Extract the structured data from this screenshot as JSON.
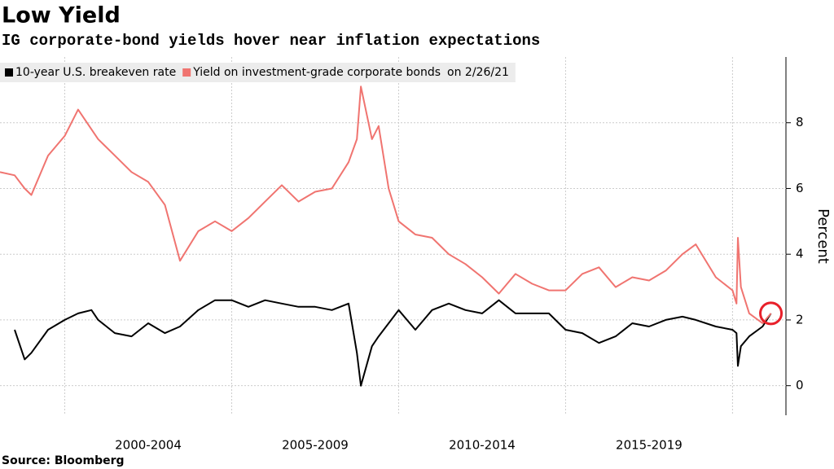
{
  "chart_data": {
    "type": "line",
    "title": "Low Yield",
    "subtitle": "IG corporate-bond yields hover near inflation expectations",
    "ylabel": "Percent",
    "source": "Source: Bloomberg",
    "legend_note": "on 2/26/21",
    "x": [
      1998.06,
      1998.5,
      1998.8,
      1999,
      1999.5,
      2000,
      2000.4,
      2000.8,
      2001,
      2001.5,
      2002,
      2002.5,
      2003,
      2003.45,
      2004,
      2004.5,
      2005,
      2005.5,
      2006,
      2006.5,
      2007,
      2007.5,
      2008,
      2008.5,
      2008.75,
      2008.87,
      2009.2,
      2009.4,
      2009.7,
      2010,
      2010.5,
      2011,
      2011.5,
      2012,
      2012.5,
      2013,
      2013.5,
      2014,
      2014.5,
      2015,
      2015.5,
      2016,
      2016.5,
      2017,
      2017.5,
      2018,
      2018.5,
      2018.9,
      2019.5,
      2020,
      2020.12,
      2020.16,
      2020.25,
      2020.5,
      2020.9,
      2021.15
    ],
    "series": [
      {
        "name": "10-year U.S. breakeven rate",
        "color": "#000000",
        "values": [
          null,
          1.7,
          0.8,
          1.0,
          1.7,
          2.0,
          2.2,
          2.3,
          2.0,
          1.6,
          1.5,
          1.9,
          1.6,
          1.8,
          2.3,
          2.6,
          2.6,
          2.4,
          2.6,
          2.5,
          2.4,
          2.4,
          2.3,
          2.5,
          1.0,
          0.0,
          1.2,
          1.5,
          1.9,
          2.3,
          1.7,
          2.3,
          2.5,
          2.3,
          2.2,
          2.6,
          2.2,
          2.2,
          2.2,
          1.7,
          1.6,
          1.3,
          1.5,
          1.9,
          1.8,
          2.0,
          2.1,
          2.0,
          1.8,
          1.7,
          1.6,
          0.6,
          1.2,
          1.5,
          1.8,
          2.2
        ]
      },
      {
        "name": "Yield on investment-grade corporate bonds",
        "color": "#f07470",
        "values": [
          6.5,
          6.4,
          6.0,
          5.8,
          7.0,
          7.6,
          8.4,
          7.8,
          7.5,
          7.0,
          6.5,
          6.2,
          5.5,
          3.8,
          4.7,
          5.0,
          4.7,
          5.1,
          5.6,
          6.1,
          5.6,
          5.9,
          6.0,
          6.8,
          7.5,
          9.1,
          7.5,
          7.9,
          6.0,
          5.0,
          4.6,
          4.5,
          4.0,
          3.7,
          3.3,
          2.8,
          3.4,
          3.1,
          2.9,
          2.9,
          3.4,
          3.6,
          3.0,
          3.3,
          3.2,
          3.5,
          4.0,
          4.3,
          3.3,
          2.9,
          2.5,
          4.5,
          3.0,
          2.2,
          1.9,
          2.2
        ]
      }
    ],
    "xlim": [
      1998.06,
      2021.6
    ],
    "xticks": [
      {
        "value": 2002.5,
        "label": "2000-2004"
      },
      {
        "value": 2007.5,
        "label": "2005-2009"
      },
      {
        "value": 2012.5,
        "label": "2010-2014"
      },
      {
        "value": 2017.5,
        "label": "2015-2019"
      }
    ],
    "ylim": [
      -0.9,
      10
    ],
    "yticks": [
      0,
      2,
      4,
      6,
      8
    ],
    "grid": true,
    "legend": "top-left"
  }
}
